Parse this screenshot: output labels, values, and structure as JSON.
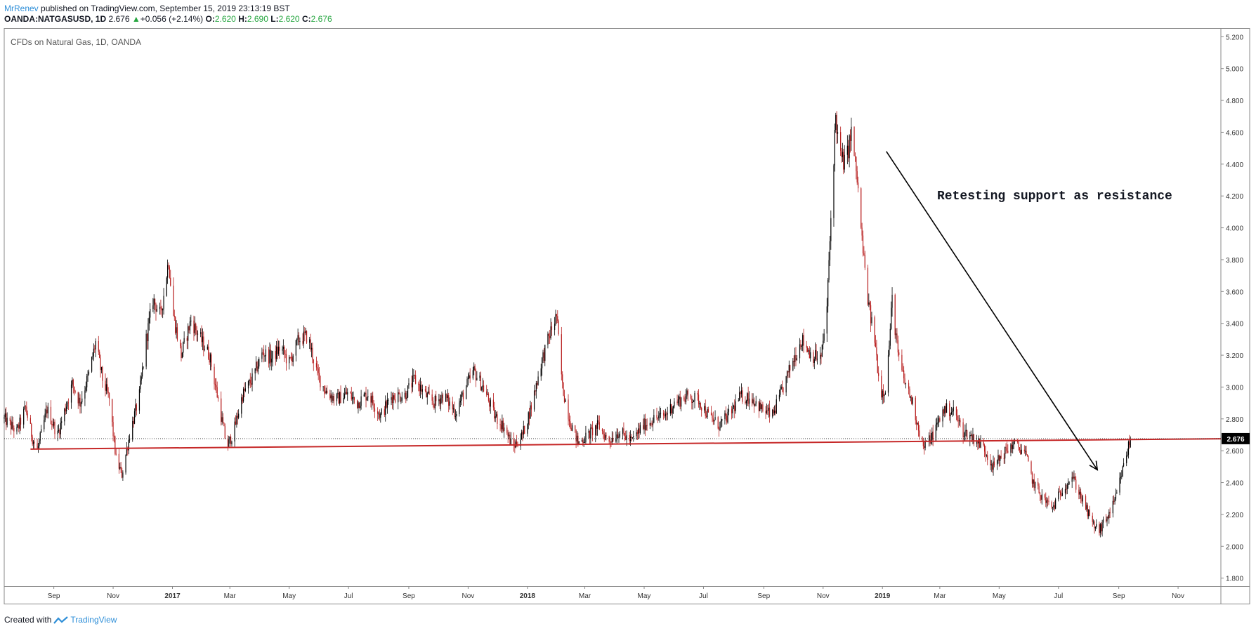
{
  "header": {
    "author": "MrRenev",
    "published_text": "published on TradingView.com, September 15, 2019 23:13:19 BST",
    "symbol": "OANDA:NATGASUSD, 1D",
    "last": "2.676",
    "change_arrow": "▲",
    "change": "+0.056 (+2.14%)",
    "o_label": "O:",
    "o_value": "2.620",
    "h_label": "H:",
    "h_value": "2.690",
    "l_label": "L:",
    "l_value": "2.620",
    "c_label": "C:",
    "c_value": "2.676"
  },
  "chart_title": "CFDs on Natural Gas, 1D, OANDA",
  "annotation_text": "Retesting support as resistance",
  "footer": {
    "created_with": "Created with",
    "brand": "TradingView"
  },
  "colors": {
    "bull": "#000000",
    "bear": "#b71c1c",
    "support_line": "#c62828",
    "author": "#2f8fd8",
    "price_tag": "#000000"
  },
  "chart_data": {
    "type": "candlestick",
    "title": "CFDs on Natural Gas, 1D, OANDA",
    "ylim": [
      1.75,
      5.25
    ],
    "y_ticks": [
      "5.200",
      "5.000",
      "4.800",
      "4.600",
      "4.400",
      "4.200",
      "4.000",
      "3.800",
      "3.600",
      "3.400",
      "3.200",
      "3.000",
      "2.800",
      "2.600",
      "2.400",
      "2.200",
      "2.000",
      "1.800"
    ],
    "x_ticks": [
      "Sep",
      "Nov",
      "2017",
      "Mar",
      "May",
      "Jul",
      "Sep",
      "Nov",
      "2018",
      "Mar",
      "May",
      "Jul",
      "Sep",
      "Nov",
      "2019",
      "Mar",
      "May",
      "Jul",
      "Sep",
      "Nov"
    ],
    "x_tick_dates": [
      "2016-09-01",
      "2016-11-01",
      "2017-01-01",
      "2017-03-01",
      "2017-05-01",
      "2017-07-01",
      "2017-09-01",
      "2017-11-01",
      "2018-01-01",
      "2018-03-01",
      "2018-05-01",
      "2018-07-01",
      "2018-09-01",
      "2018-11-01",
      "2019-01-01",
      "2019-03-01",
      "2019-05-01",
      "2019-07-01",
      "2019-09-01",
      "2019-11-01"
    ],
    "x_range": [
      "2016-07-12",
      "2019-12-15"
    ],
    "last_price": "2.676",
    "price_path": [
      [
        "2016-07-12",
        2.8
      ],
      [
        "2016-07-25",
        2.72
      ],
      [
        "2016-08-03",
        2.87
      ],
      [
        "2016-08-10",
        2.68
      ],
      [
        "2016-08-15",
        2.6
      ],
      [
        "2016-08-25",
        2.86
      ],
      [
        "2016-09-05",
        2.7
      ],
      [
        "2016-09-20",
        3.02
      ],
      [
        "2016-09-28",
        2.9
      ],
      [
        "2016-10-07",
        3.08
      ],
      [
        "2016-10-14",
        3.28
      ],
      [
        "2016-10-21",
        3.05
      ],
      [
        "2016-10-28",
        2.92
      ],
      [
        "2016-11-04",
        2.55
      ],
      [
        "2016-11-10",
        2.45
      ],
      [
        "2016-11-18",
        2.7
      ],
      [
        "2016-11-28",
        2.95
      ],
      [
        "2016-12-05",
        3.3
      ],
      [
        "2016-12-12",
        3.55
      ],
      [
        "2016-12-20",
        3.45
      ],
      [
        "2016-12-28",
        3.8
      ],
      [
        "2017-01-02",
        3.45
      ],
      [
        "2017-01-10",
        3.2
      ],
      [
        "2017-01-20",
        3.42
      ],
      [
        "2017-01-30",
        3.3
      ],
      [
        "2017-02-08",
        3.2
      ],
      [
        "2017-02-17",
        2.92
      ],
      [
        "2017-02-26",
        2.62
      ],
      [
        "2017-03-05",
        2.72
      ],
      [
        "2017-03-14",
        2.95
      ],
      [
        "2017-03-24",
        3.05
      ],
      [
        "2017-04-04",
        3.22
      ],
      [
        "2017-04-13",
        3.18
      ],
      [
        "2017-04-22",
        3.25
      ],
      [
        "2017-05-01",
        3.15
      ],
      [
        "2017-05-11",
        3.3
      ],
      [
        "2017-05-20",
        3.32
      ],
      [
        "2017-05-30",
        3.08
      ],
      [
        "2017-06-07",
        2.98
      ],
      [
        "2017-06-18",
        2.92
      ],
      [
        "2017-06-30",
        2.96
      ],
      [
        "2017-07-10",
        2.9
      ],
      [
        "2017-07-21",
        2.96
      ],
      [
        "2017-08-03",
        2.82
      ],
      [
        "2017-08-14",
        2.94
      ],
      [
        "2017-08-28",
        2.95
      ],
      [
        "2017-09-07",
        3.05
      ],
      [
        "2017-09-18",
        2.95
      ],
      [
        "2017-09-27",
        2.9
      ],
      [
        "2017-10-07",
        2.95
      ],
      [
        "2017-10-19",
        2.84
      ],
      [
        "2017-10-30",
        3.0
      ],
      [
        "2017-11-07",
        3.1
      ],
      [
        "2017-11-18",
        2.98
      ],
      [
        "2017-11-28",
        2.82
      ],
      [
        "2017-12-08",
        2.75
      ],
      [
        "2017-12-17",
        2.62
      ],
      [
        "2017-12-27",
        2.7
      ],
      [
        "2018-01-05",
        2.88
      ],
      [
        "2018-01-15",
        3.15
      ],
      [
        "2018-01-25",
        3.35
      ],
      [
        "2018-01-31",
        3.45
      ],
      [
        "2018-02-06",
        3.0
      ],
      [
        "2018-02-14",
        2.78
      ],
      [
        "2018-02-22",
        2.65
      ],
      [
        "2018-03-05",
        2.7
      ],
      [
        "2018-03-15",
        2.76
      ],
      [
        "2018-03-25",
        2.66
      ],
      [
        "2018-04-05",
        2.72
      ],
      [
        "2018-04-18",
        2.66
      ],
      [
        "2018-04-30",
        2.76
      ],
      [
        "2018-05-11",
        2.8
      ],
      [
        "2018-05-22",
        2.82
      ],
      [
        "2018-06-01",
        2.9
      ],
      [
        "2018-06-14",
        2.94
      ],
      [
        "2018-06-26",
        2.92
      ],
      [
        "2018-07-06",
        2.82
      ],
      [
        "2018-07-17",
        2.76
      ],
      [
        "2018-07-27",
        2.82
      ],
      [
        "2018-08-08",
        2.94
      ],
      [
        "2018-08-20",
        2.93
      ],
      [
        "2018-08-30",
        2.86
      ],
      [
        "2018-09-10",
        2.82
      ],
      [
        "2018-09-20",
        2.98
      ],
      [
        "2018-09-30",
        3.15
      ],
      [
        "2018-10-10",
        3.3
      ],
      [
        "2018-10-20",
        3.2
      ],
      [
        "2018-10-30",
        3.18
      ],
      [
        "2018-11-05",
        3.5
      ],
      [
        "2018-11-10",
        4.2
      ],
      [
        "2018-11-14",
        4.7
      ],
      [
        "2018-11-18",
        4.45
      ],
      [
        "2018-11-24",
        4.4
      ],
      [
        "2018-11-30",
        4.6
      ],
      [
        "2018-12-06",
        4.3
      ],
      [
        "2018-12-12",
        3.85
      ],
      [
        "2018-12-18",
        3.5
      ],
      [
        "2018-12-24",
        3.3
      ],
      [
        "2018-12-30",
        2.96
      ],
      [
        "2019-01-05",
        3.0
      ],
      [
        "2019-01-11",
        3.55
      ],
      [
        "2019-01-17",
        3.2
      ],
      [
        "2019-01-23",
        3.05
      ],
      [
        "2019-02-01",
        2.9
      ],
      [
        "2019-02-12",
        2.62
      ],
      [
        "2019-02-22",
        2.7
      ],
      [
        "2019-03-05",
        2.86
      ],
      [
        "2019-03-15",
        2.85
      ],
      [
        "2019-03-25",
        2.72
      ],
      [
        "2019-04-05",
        2.68
      ],
      [
        "2019-04-15",
        2.62
      ],
      [
        "2019-04-25",
        2.5
      ],
      [
        "2019-05-05",
        2.58
      ],
      [
        "2019-05-15",
        2.64
      ],
      [
        "2019-05-27",
        2.6
      ],
      [
        "2019-06-05",
        2.4
      ],
      [
        "2019-06-15",
        2.3
      ],
      [
        "2019-06-25",
        2.24
      ],
      [
        "2019-07-05",
        2.36
      ],
      [
        "2019-07-15",
        2.44
      ],
      [
        "2019-07-25",
        2.3
      ],
      [
        "2019-08-05",
        2.14
      ],
      [
        "2019-08-12",
        2.1
      ],
      [
        "2019-08-20",
        2.18
      ],
      [
        "2019-08-28",
        2.28
      ],
      [
        "2019-09-05",
        2.48
      ],
      [
        "2019-09-13",
        2.676
      ]
    ],
    "support_line": {
      "from": [
        "2016-08-08",
        2.61
      ],
      "to": [
        "2019-12-15",
        2.675
      ]
    },
    "last_price_line": 2.676,
    "annotation": {
      "text": "Retesting support as resistance",
      "arrow_from": [
        "2019-01-05",
        4.48
      ],
      "arrow_to": [
        "2019-08-10",
        2.48
      ]
    }
  }
}
